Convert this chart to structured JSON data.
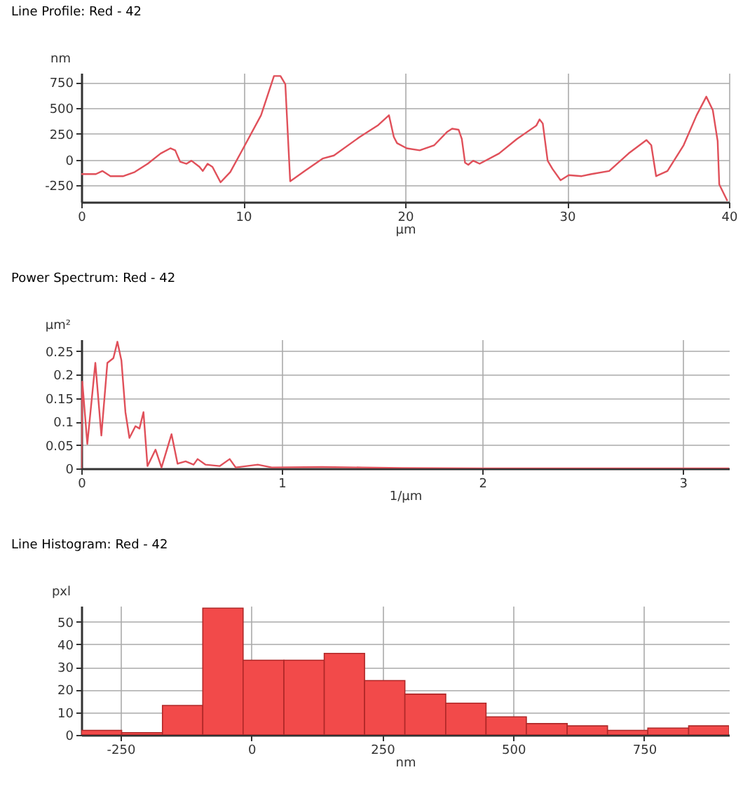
{
  "chart_data": [
    {
      "type": "line",
      "title": "Line Profile: Red  -  42",
      "xlabel": "µm",
      "ylabel": "nm",
      "xlim": [
        0,
        40
      ],
      "ylim": [
        -410,
        840
      ],
      "xticks": [
        0,
        10,
        20,
        30,
        40
      ],
      "yticks": [
        -250,
        0,
        250,
        500,
        750
      ],
      "grid": true,
      "series": [
        {
          "color": "#e0505a",
          "x": [
            0,
            0.9,
            1.3,
            1.8,
            2.3,
            2.6,
            3.3,
            4.1,
            4.9,
            5.5,
            5.8,
            6.1,
            6.5,
            6.8,
            7.3,
            7.5,
            7.8,
            8.1,
            8.6,
            9.2,
            10,
            11.1,
            11.9,
            12.3,
            12.6,
            12.9,
            13.8,
            14.9,
            15.6,
            17.2,
            18.3,
            19,
            19.3,
            19.5,
            20.1,
            20.9,
            21.8,
            22.6,
            22.9,
            23.3,
            23.5,
            23.7,
            23.9,
            24.2,
            24.6,
            25.8,
            26.9,
            28.1,
            28.3,
            28.5,
            28.8,
            29.1,
            29.6,
            30.1,
            30.9,
            31.5,
            32.6,
            33.8,
            34.9,
            35.2,
            35.5,
            36.2,
            37.2,
            38,
            38.6,
            39,
            39.3,
            39.4,
            39.9
          ],
          "values": [
            -140,
            -140,
            -110,
            -160,
            -160,
            -160,
            -120,
            -40,
            60,
            110,
            90,
            -20,
            -40,
            -10,
            -70,
            -110,
            -40,
            -70,
            -220,
            -120,
            110,
            430,
            810,
            810,
            730,
            -210,
            -110,
            10,
            40,
            220,
            330,
            430,
            220,
            160,
            110,
            90,
            140,
            270,
            300,
            290,
            200,
            -30,
            -50,
            -10,
            -40,
            60,
            200,
            330,
            390,
            350,
            -10,
            -90,
            -200,
            -150,
            -160,
            -140,
            -110,
            60,
            190,
            140,
            -160,
            -110,
            140,
            430,
            610,
            480,
            180,
            -240,
            -400
          ]
        }
      ]
    },
    {
      "type": "line",
      "title": "Power Spectrum: Red  -  42",
      "xlabel": "1/µm",
      "ylabel": "µm²",
      "xlim": [
        0,
        3.23
      ],
      "ylim": [
        0,
        0.275
      ],
      "xticks": [
        0,
        1,
        2,
        3
      ],
      "yticks": [
        0,
        0.05,
        0.1,
        0.15,
        0.2,
        0.25
      ],
      "grid": true,
      "series": [
        {
          "color": "#e0505a",
          "x": [
            0,
            0.005,
            0.03,
            0.07,
            0.1,
            0.13,
            0.16,
            0.18,
            0.2,
            0.22,
            0.24,
            0.27,
            0.29,
            0.31,
            0.33,
            0.37,
            0.4,
            0.45,
            0.48,
            0.52,
            0.56,
            0.58,
            0.62,
            0.69,
            0.74,
            0.77,
            0.88,
            0.95,
            1.2,
            1.4,
            1.6,
            2,
            3.23
          ],
          "values": [
            0,
            0.185,
            0.052,
            0.225,
            0.07,
            0.225,
            0.235,
            0.27,
            0.23,
            0.12,
            0.065,
            0.09,
            0.085,
            0.12,
            0.005,
            0.04,
            0.002,
            0.073,
            0.01,
            0.015,
            0.008,
            0.02,
            0.008,
            0.005,
            0.02,
            0.002,
            0.008,
            0.002,
            0.003,
            0.002,
            0.001,
            0,
            0
          ]
        }
      ]
    },
    {
      "type": "histogram",
      "title": "Line Histogram: Red  -  42",
      "xlabel": "nm",
      "ylabel": "pxl",
      "xlim": [
        -325,
        912
      ],
      "ylim": [
        0,
        57
      ],
      "xticks": [
        -250,
        0,
        250,
        500,
        750
      ],
      "yticks": [
        0,
        10,
        20,
        30,
        40,
        50
      ],
      "grid": true,
      "color": "#f24a4a",
      "bins": [
        -325,
        -248,
        -170,
        -93,
        -16,
        62,
        139,
        216,
        293,
        371,
        448,
        525,
        603,
        680,
        757,
        835,
        912
      ],
      "values": [
        2,
        1,
        13,
        56,
        33,
        33,
        36,
        24,
        18,
        14,
        8,
        5,
        4,
        2,
        3,
        4
      ]
    }
  ]
}
